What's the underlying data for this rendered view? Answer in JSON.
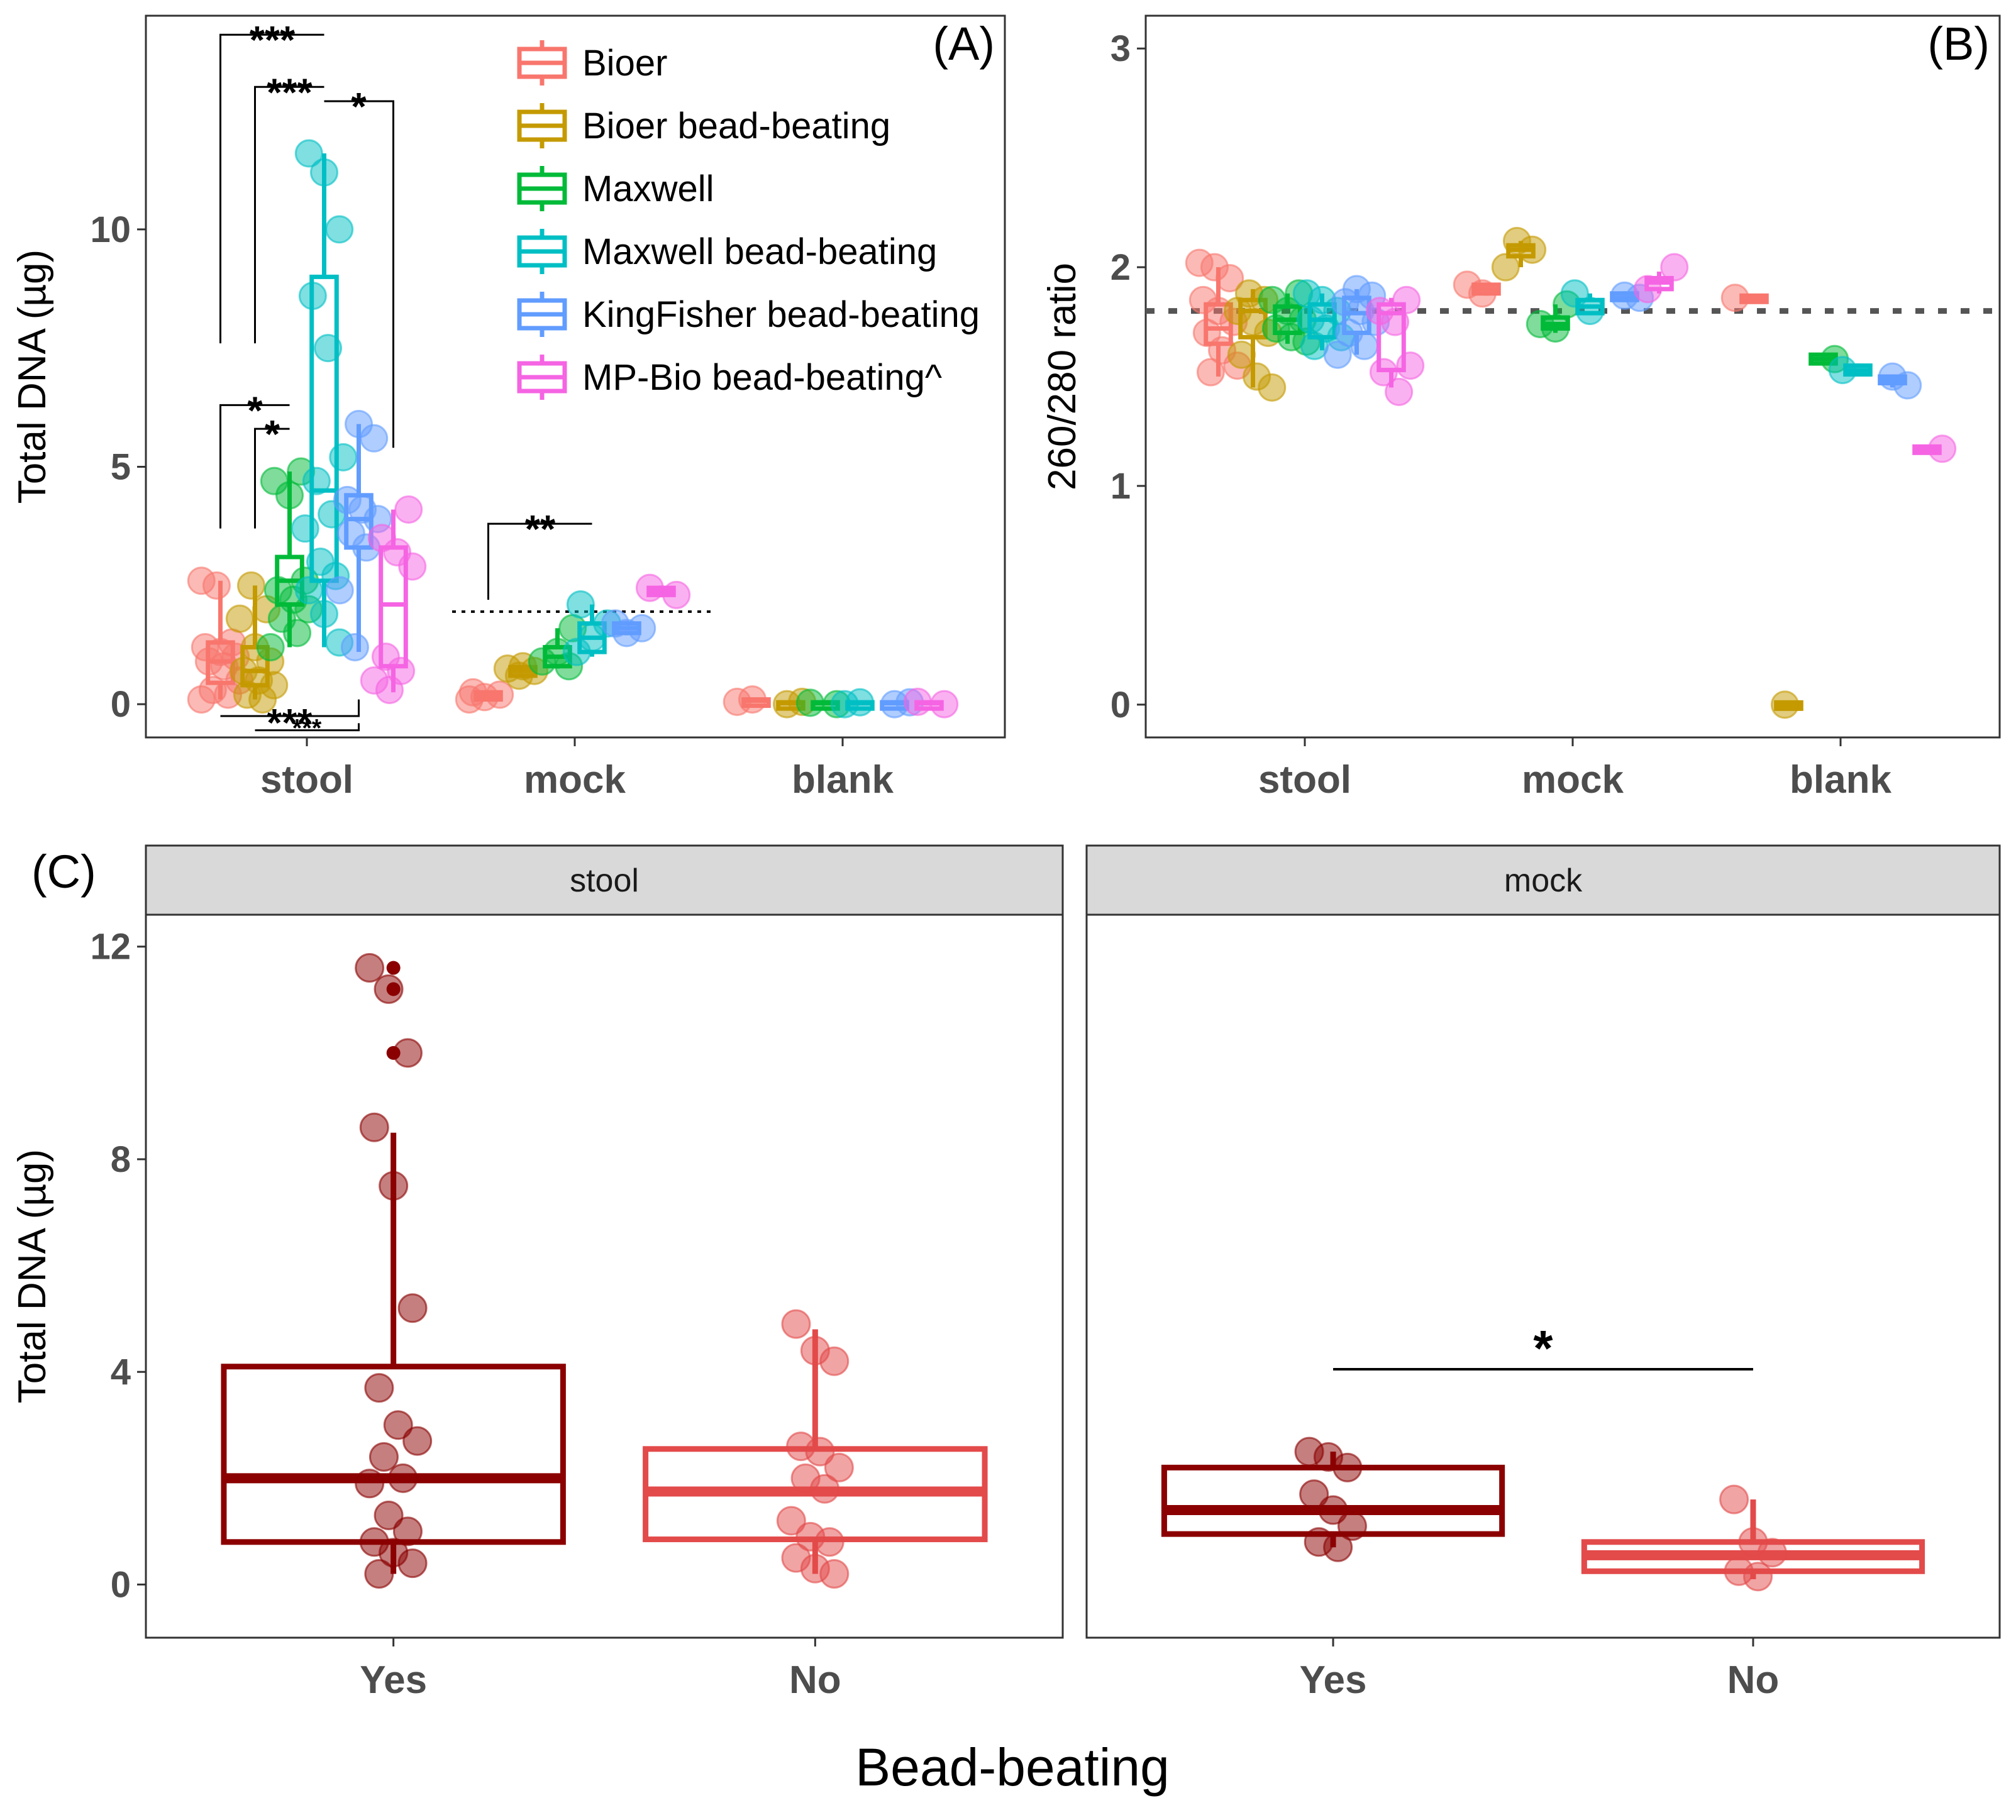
{
  "figure": {
    "xlabel_bottom": "Bead-beating"
  },
  "chart_data": [
    {
      "panel": "A",
      "panel_label": "(A)",
      "type": "box",
      "ylabel": "Total DNA (µg)",
      "ylim": [
        -0.7,
        14.5
      ],
      "yticks": [
        0,
        5,
        10
      ],
      "ytick_labels": [
        "0",
        "5",
        "10"
      ],
      "categories": [
        "stool",
        "mock",
        "blank"
      ],
      "series": [
        {
          "name": "Bioer",
          "color": "#F8766D",
          "boxes": {
            "stool": {
              "q1": 0.45,
              "median": 0.9,
              "q3": 1.3,
              "wlo": 0.1,
              "whi": 2.6
            },
            "mock": {
              "q1": 0.1,
              "median": 0.18,
              "q3": 0.25,
              "wlo": 0.08,
              "whi": 0.28
            },
            "blank": {
              "q1": 0.04,
              "median": 0.07,
              "q3": 0.1,
              "wlo": 0.03,
              "whi": 0.12
            }
          },
          "points": {
            "stool": [
              2.6,
              2.5,
              1.3,
              1.2,
              1.1,
              1.0,
              0.9,
              0.8,
              0.5,
              0.3,
              0.2,
              0.1
            ],
            "mock": [
              0.1,
              0.15,
              0.2,
              0.25
            ],
            "blank": [
              0.05,
              0.1
            ]
          }
        },
        {
          "name": "Bioer bead-beating",
          "color": "#C49A00",
          "boxes": {
            "stool": {
              "q1": 0.4,
              "median": 0.7,
              "q3": 1.2,
              "wlo": 0.1,
              "whi": 2.5
            },
            "mock": {
              "q1": 0.6,
              "median": 0.7,
              "q3": 0.78,
              "wlo": 0.55,
              "whi": 0.82
            },
            "blank": {
              "q1": 0.0,
              "median": 0.02,
              "q3": 0.04,
              "wlo": 0.0,
              "whi": 0.05
            }
          },
          "points": {
            "stool": [
              2.5,
              2.0,
              1.8,
              1.2,
              0.9,
              0.7,
              0.5,
              0.4,
              0.2,
              0.1
            ],
            "mock": [
              0.6,
              0.7,
              0.75,
              0.8
            ],
            "blank": [
              0.0,
              0.05
            ]
          }
        },
        {
          "name": "Maxwell",
          "color": "#00BA38",
          "boxes": {
            "stool": {
              "q1": 2.1,
              "median": 2.6,
              "q3": 3.1,
              "wlo": 1.2,
              "whi": 4.9
            },
            "mock": {
              "q1": 0.8,
              "median": 1.0,
              "q3": 1.2,
              "wlo": 0.75,
              "whi": 1.6
            },
            "blank": {
              "q1": 0.0,
              "median": 0.02,
              "q3": 0.04,
              "wlo": 0.0,
              "whi": 0.05
            }
          },
          "points": {
            "stool": [
              4.9,
              4.7,
              4.4,
              2.6,
              2.4,
              2.2,
              2.0,
              1.8,
              1.5,
              1.2
            ],
            "mock": [
              0.8,
              0.9,
              1.1,
              1.6
            ],
            "blank": [
              0.0,
              0.03
            ]
          }
        },
        {
          "name": "Maxwell bead-beating",
          "color": "#00BFC4",
          "boxes": {
            "stool": {
              "q1": 2.6,
              "median": 4.5,
              "q3": 9.0,
              "wlo": 1.2,
              "whi": 11.6
            },
            "mock": {
              "q1": 1.1,
              "median": 1.4,
              "q3": 1.7,
              "wlo": 1.0,
              "whi": 2.1
            },
            "blank": {
              "q1": 0.0,
              "median": 0.02,
              "q3": 0.04,
              "wlo": 0.0,
              "whi": 0.05
            }
          },
          "points": {
            "stool": [
              11.6,
              11.2,
              10.0,
              8.6,
              7.5,
              5.2,
              4.7,
              4.0,
              3.7,
              3.0,
              2.7,
              2.4,
              1.9,
              1.3
            ],
            "mock": [
              1.1,
              1.4,
              1.7,
              2.1
            ],
            "blank": [
              0.0,
              0.04
            ]
          }
        },
        {
          "name": "KingFisher bead-beating",
          "color": "#619CFF",
          "boxes": {
            "stool": {
              "q1": 3.3,
              "median": 3.9,
              "q3": 4.4,
              "wlo": 1.1,
              "whi": 5.9
            },
            "mock": {
              "q1": 1.5,
              "median": 1.6,
              "q3": 1.7,
              "wlo": 1.45,
              "whi": 1.75
            },
            "blank": {
              "q1": 0.0,
              "median": 0.02,
              "q3": 0.04,
              "wlo": 0.0,
              "whi": 0.05
            }
          },
          "points": {
            "stool": [
              5.9,
              5.6,
              4.3,
              4.1,
              3.9,
              3.6,
              3.3,
              2.4,
              1.2
            ],
            "mock": [
              1.5,
              1.6,
              1.7
            ],
            "blank": [
              0.0,
              0.04
            ]
          }
        },
        {
          "name": "MP-Bio bead-beating^",
          "color": "#F564E3",
          "boxes": {
            "stool": {
              "q1": 0.8,
              "median": 2.1,
              "q3": 3.3,
              "wlo": 0.25,
              "whi": 4.1
            },
            "mock": {
              "q1": 2.3,
              "median": 2.38,
              "q3": 2.45,
              "wlo": 2.25,
              "whi": 2.5
            },
            "blank": {
              "q1": 0.0,
              "median": 0.02,
              "q3": 0.04,
              "wlo": 0.0,
              "whi": 0.05
            }
          },
          "points": {
            "stool": [
              4.1,
              3.5,
              3.2,
              2.9,
              1.0,
              0.7,
              0.5,
              0.3
            ],
            "mock": [
              2.3,
              2.45
            ],
            "blank": [
              0.0,
              0.05
            ]
          }
        }
      ],
      "reference_line": {
        "y": 1.95,
        "style": "dotted",
        "category": "mock"
      },
      "significance": [
        {
          "label": "***",
          "from": "Bioer",
          "to": "Maxwell bead-beating",
          "category": "stool",
          "y": 14.1,
          "drop_from_y": 7.6,
          "drop_to_y": 14.1
        },
        {
          "label": "***",
          "from": "Bioer bead-beating",
          "to": "Maxwell bead-beating",
          "category": "stool",
          "y": 13.0,
          "drop_from_y": 7.6,
          "drop_to_y": 13.0
        },
        {
          "label": "*",
          "from": "Maxwell bead-beating",
          "to": "MP-Bio bead-beating^",
          "category": "stool",
          "y": 12.7,
          "drop_from_y": 12.7,
          "drop_to_y": 5.4
        },
        {
          "label": "*",
          "from": "Bioer",
          "to": "Maxwell",
          "category": "stool",
          "y": 6.3,
          "drop_from_y": 3.7,
          "drop_to_y": 6.3
        },
        {
          "label": "*",
          "from": "Bioer bead-beating",
          "to": "Maxwell",
          "category": "stool",
          "y": 5.8,
          "drop_from_y": 3.7,
          "drop_to_y": 5.8
        },
        {
          "label": "***",
          "from": "Bioer",
          "to": "KingFisher bead-beating",
          "category": "stool",
          "y": -0.25,
          "drop_from_y": -0.25,
          "drop_to_y": 0.1,
          "below": true
        },
        {
          "label": "***",
          "from": "Bioer bead-beating",
          "to": "KingFisher bead-beating",
          "category": "stool",
          "y": -0.55,
          "drop_from_y": -0.55,
          "drop_to_y": -0.4,
          "below": true,
          "small": true
        },
        {
          "label": "**",
          "from": "Bioer",
          "to": "Maxwell bead-beating",
          "category": "mock",
          "y": 3.8,
          "drop_from_y": 2.2,
          "drop_to_y": 3.8
        }
      ],
      "legend": {
        "position": "top-center"
      }
    },
    {
      "panel": "B",
      "panel_label": "(B)",
      "type": "box",
      "ylabel": "260/280 ratio",
      "ylim": [
        -0.15,
        3.15
      ],
      "yticks": [
        0,
        1,
        2,
        3
      ],
      "ytick_labels": [
        "0",
        "1",
        "2",
        "3"
      ],
      "categories": [
        "stool",
        "mock",
        "blank"
      ],
      "reference_line": {
        "y": 1.8,
        "style": "dotted"
      },
      "series": [
        {
          "name": "Bioer",
          "color": "#F8766D",
          "boxes": {
            "stool": {
              "q1": 1.65,
              "median": 1.72,
              "q3": 1.83,
              "wlo": 1.5,
              "whi": 2.0
            },
            "mock": {
              "q1": 1.88,
              "median": 1.9,
              "q3": 1.92,
              "wlo": 1.87,
              "whi": 1.93
            },
            "blank": {
              "q1": 1.85,
              "median": 1.86,
              "q3": 1.87,
              "wlo": 1.85,
              "whi": 1.87
            }
          },
          "points": {
            "stool": [
              2.02,
              2.0,
              1.95,
              1.85,
              1.8,
              1.75,
              1.7,
              1.62,
              1.55,
              1.52
            ],
            "mock": [
              1.92,
              1.88
            ],
            "blank": [
              1.86
            ]
          }
        },
        {
          "name": "Bioer bead-beating",
          "color": "#C49A00",
          "boxes": {
            "stool": {
              "q1": 1.68,
              "median": 1.8,
              "q3": 1.85,
              "wlo": 1.45,
              "whi": 1.9
            },
            "mock": {
              "q1": 2.05,
              "median": 2.08,
              "q3": 2.1,
              "wlo": 2.0,
              "whi": 2.12
            },
            "blank": {
              "q1": 0.0,
              "median": 0.0,
              "q3": 0.01,
              "wlo": 0.0,
              "whi": 0.01
            }
          },
          "points": {
            "stool": [
              1.88,
              1.85,
              1.8,
              1.75,
              1.7,
              1.6,
              1.5,
              1.45
            ],
            "mock": [
              2.12,
              2.08,
              2.0
            ],
            "blank": [
              0.0
            ]
          }
        },
        {
          "name": "Maxwell",
          "color": "#00BA38",
          "boxes": {
            "stool": {
              "q1": 1.7,
              "median": 1.76,
              "q3": 1.82,
              "wlo": 1.65,
              "whi": 1.88
            },
            "mock": {
              "q1": 1.72,
              "median": 1.74,
              "q3": 1.77,
              "wlo": 1.7,
              "whi": 1.83
            },
            "blank": {
              "q1": 1.56,
              "median": 1.58,
              "q3": 1.6,
              "wlo": 1.56,
              "whi": 1.6
            }
          },
          "points": {
            "stool": [
              1.88,
              1.85,
              1.8,
              1.76,
              1.72,
              1.68,
              1.66
            ],
            "mock": [
              1.83,
              1.74,
              1.72
            ],
            "blank": [
              1.58
            ]
          }
        },
        {
          "name": "Maxwell bead-beating",
          "color": "#00BFC4",
          "boxes": {
            "stool": {
              "q1": 1.68,
              "median": 1.76,
              "q3": 1.83,
              "wlo": 1.62,
              "whi": 1.88
            },
            "mock": {
              "q1": 1.79,
              "median": 1.82,
              "q3": 1.85,
              "wlo": 1.78,
              "whi": 1.88
            },
            "blank": {
              "q1": 1.51,
              "median": 1.53,
              "q3": 1.55,
              "wlo": 1.5,
              "whi": 1.56
            }
          },
          "points": {
            "stool": [
              1.88,
              1.85,
              1.8,
              1.76,
              1.72,
              1.68,
              1.64
            ],
            "mock": [
              1.88,
              1.8
            ],
            "blank": [
              1.53
            ]
          }
        },
        {
          "name": "KingFisher bead-beating",
          "color": "#619CFF",
          "boxes": {
            "stool": {
              "q1": 1.7,
              "median": 1.79,
              "q3": 1.86,
              "wlo": 1.6,
              "whi": 1.9
            },
            "mock": {
              "q1": 1.85,
              "median": 1.86,
              "q3": 1.88,
              "wlo": 1.84,
              "whi": 1.89
            },
            "blank": {
              "q1": 1.47,
              "median": 1.48,
              "q3": 1.5,
              "wlo": 1.45,
              "whi": 1.5
            }
          },
          "points": {
            "stool": [
              1.9,
              1.87,
              1.84,
              1.8,
              1.75,
              1.7,
              1.64,
              1.6
            ],
            "mock": [
              1.87,
              1.86
            ],
            "blank": [
              1.5,
              1.46
            ]
          }
        },
        {
          "name": "MP-Bio bead-beating^",
          "color": "#F564E3",
          "boxes": {
            "stool": {
              "q1": 1.53,
              "median": 1.79,
              "q3": 1.83,
              "wlo": 1.45,
              "whi": 1.86
            },
            "mock": {
              "q1": 1.9,
              "median": 1.93,
              "q3": 1.95,
              "wlo": 1.88,
              "whi": 1.98
            },
            "blank": {
              "q1": 1.16,
              "median": 1.17,
              "q3": 1.18,
              "wlo": 1.16,
              "whi": 1.18
            }
          },
          "points": {
            "stool": [
              1.85,
              1.8,
              1.75,
              1.55,
              1.52,
              1.43
            ],
            "mock": [
              2.0,
              1.9
            ],
            "blank": [
              1.17
            ]
          }
        }
      ]
    },
    {
      "panel": "C",
      "panel_label": "(C)",
      "type": "box",
      "ylabel": "Total DNA (µg)",
      "xlabel": "Bead-beating",
      "ylim": [
        -1.0,
        12.6
      ],
      "yticks": [
        0,
        4,
        8,
        12
      ],
      "ytick_labels": [
        "0",
        "4",
        "8",
        "12"
      ],
      "facets": [
        {
          "strip": "stool",
          "groups": [
            {
              "label": "Yes",
              "color": "#8B0000",
              "box": {
                "q1": 0.8,
                "median": 2.0,
                "q3": 4.1,
                "wlo": 0.2,
                "whi": 8.5
              },
              "points": [
                11.6,
                11.2,
                10.0,
                8.6,
                7.5,
                5.2,
                3.7,
                3.0,
                2.7,
                2.4,
                2.0,
                1.9,
                1.3,
                1.0,
                0.8,
                0.6,
                0.4,
                0.2
              ],
              "outliers": [
                11.6,
                11.2,
                10.0
              ]
            },
            {
              "label": "No",
              "color": "#E34A4A",
              "box": {
                "q1": 0.85,
                "median": 1.75,
                "q3": 2.55,
                "wlo": 0.2,
                "whi": 4.8
              },
              "points": [
                4.9,
                4.4,
                4.2,
                2.6,
                2.5,
                2.2,
                2.0,
                1.8,
                1.2,
                0.9,
                0.8,
                0.5,
                0.3,
                0.2
              ],
              "outliers": []
            }
          ],
          "significance": null
        },
        {
          "strip": "mock",
          "groups": [
            {
              "label": "Yes",
              "color": "#8B0000",
              "box": {
                "q1": 0.95,
                "median": 1.4,
                "q3": 2.2,
                "wlo": 0.7,
                "whi": 2.5
              },
              "points": [
                2.5,
                2.4,
                2.2,
                1.7,
                1.4,
                1.1,
                0.8,
                0.7
              ],
              "outliers": []
            },
            {
              "label": "No",
              "color": "#E34A4A",
              "box": {
                "q1": 0.25,
                "median": 0.55,
                "q3": 0.8,
                "wlo": 0.1,
                "whi": 1.6
              },
              "points": [
                1.6,
                0.8,
                0.6,
                0.25,
                0.15
              ],
              "outliers": []
            }
          ],
          "significance": {
            "label": "*",
            "y": 4.05
          }
        }
      ]
    }
  ]
}
